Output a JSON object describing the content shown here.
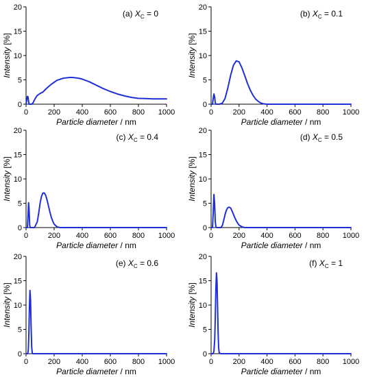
{
  "figure": {
    "x_label_italic": "Particle diameter",
    "x_label_unit": " / nm",
    "y_label_italic": "Intensity",
    "y_label_unit": " [%]"
  },
  "chart_data": [
    {
      "type": "line",
      "panel_label": "(a) X",
      "panel_sub": "C",
      "panel_eq": " = 0",
      "xlabel": "Particle diameter / nm",
      "ylabel": "Intensity [%]",
      "xlim": [
        0,
        1000
      ],
      "ylim": [
        0,
        20
      ],
      "xticks": [
        0,
        200,
        400,
        600,
        800,
        1000
      ],
      "yticks": [
        0,
        5,
        10,
        15,
        20
      ],
      "color": "#1f2fd6",
      "series": [
        {
          "x": [
            0,
            5,
            10,
            14,
            18,
            22,
            26,
            30,
            40,
            50,
            60,
            70,
            80,
            90,
            100,
            120,
            140,
            160,
            180,
            200,
            220,
            240,
            260,
            280,
            300,
            320,
            340,
            360,
            380,
            400,
            450,
            500,
            550,
            600,
            650,
            700,
            750,
            800,
            850,
            900,
            950,
            1000
          ],
          "y": [
            0,
            0.8,
            1.6,
            1.5,
            0.6,
            0,
            0,
            0,
            0,
            0.3,
            0.9,
            1.4,
            1.8,
            2.0,
            2.2,
            2.5,
            3.1,
            3.6,
            4.1,
            4.5,
            4.9,
            5.1,
            5.3,
            5.4,
            5.45,
            5.5,
            5.45,
            5.4,
            5.3,
            5.15,
            4.6,
            3.9,
            3.2,
            2.6,
            2.1,
            1.7,
            1.4,
            1.2,
            1.15,
            1.1,
            1.1,
            1.1
          ]
        }
      ]
    },
    {
      "type": "line",
      "panel_label": "(b) X",
      "panel_sub": "C",
      "panel_eq": " = 0.1",
      "xlabel": "Particle diameter / nm",
      "ylabel": "Intensity [%]",
      "xlim": [
        0,
        1000
      ],
      "ylim": [
        0,
        20
      ],
      "xticks": [
        0,
        200,
        400,
        600,
        800,
        1000
      ],
      "yticks": [
        0,
        5,
        10,
        15,
        20
      ],
      "color": "#1f2fd6",
      "series": [
        {
          "x": [
            0,
            10,
            15,
            20,
            25,
            30,
            35,
            40,
            60,
            80,
            100,
            120,
            140,
            160,
            180,
            200,
            220,
            240,
            260,
            280,
            300,
            320,
            340,
            360,
            380,
            400,
            420,
            500,
            600,
            700,
            800,
            900,
            1000
          ],
          "y": [
            0,
            0,
            1.2,
            2.1,
            1.5,
            0.3,
            0,
            0,
            0,
            0.2,
            1.2,
            3.4,
            6.0,
            8.0,
            8.9,
            8.7,
            7.5,
            5.9,
            4.3,
            2.9,
            1.8,
            1.0,
            0.5,
            0.2,
            0.05,
            0,
            0,
            0,
            0,
            0,
            0,
            0,
            0
          ]
        }
      ]
    },
    {
      "type": "line",
      "panel_label": "(c) X",
      "panel_sub": "C",
      "panel_eq": " = 0.4",
      "xlabel": "Particle diameter / nm",
      "ylabel": "Intensity [%]",
      "xlim": [
        0,
        1000
      ],
      "ylim": [
        0,
        20
      ],
      "xticks": [
        0,
        200,
        400,
        600,
        800,
        1000
      ],
      "yticks": [
        0,
        5,
        10,
        15,
        20
      ],
      "color": "#1f2fd6",
      "series": [
        {
          "x": [
            0,
            10,
            14,
            18,
            22,
            26,
            30,
            40,
            60,
            80,
            90,
            100,
            110,
            120,
            130,
            140,
            150,
            160,
            170,
            180,
            190,
            200,
            220,
            240,
            300,
            400,
            500,
            600,
            700,
            800,
            900,
            1000
          ],
          "y": [
            0,
            0,
            2.5,
            5.1,
            3.5,
            0.5,
            0,
            0,
            0,
            1.2,
            3.0,
            5.0,
            6.4,
            7.1,
            7.1,
            6.6,
            5.6,
            4.4,
            3.2,
            2.1,
            1.3,
            0.7,
            0.15,
            0,
            0,
            0,
            0,
            0,
            0,
            0,
            0,
            0
          ]
        }
      ]
    },
    {
      "type": "line",
      "panel_label": "(d) X",
      "panel_sub": "C",
      "panel_eq": " = 0.5",
      "xlabel": "Particle diameter / nm",
      "ylabel": "Intensity [%]",
      "xlim": [
        0,
        1000
      ],
      "ylim": [
        0,
        20
      ],
      "xticks": [
        0,
        200,
        400,
        600,
        800,
        1000
      ],
      "yticks": [
        0,
        5,
        10,
        15,
        20
      ],
      "color": "#1f2fd6",
      "series": [
        {
          "x": [
            0,
            10,
            15,
            20,
            25,
            30,
            35,
            40,
            50,
            60,
            70,
            80,
            90,
            100,
            110,
            120,
            130,
            140,
            150,
            160,
            170,
            180,
            190,
            200,
            220,
            240,
            300,
            400,
            500,
            600,
            700,
            800,
            900,
            1000
          ],
          "y": [
            0,
            0,
            3.0,
            6.8,
            5.0,
            1.2,
            0.1,
            0,
            0,
            0,
            0,
            0.4,
            1.5,
            2.7,
            3.6,
            4.1,
            4.2,
            4.0,
            3.4,
            2.7,
            2.0,
            1.4,
            0.9,
            0.5,
            0.15,
            0,
            0,
            0,
            0,
            0,
            0,
            0,
            0,
            0
          ]
        }
      ]
    },
    {
      "type": "line",
      "panel_label": "(e) X",
      "panel_sub": "C",
      "panel_eq": " = 0.6",
      "xlabel": "Particle diameter / nm",
      "ylabel": "Intensity [%]",
      "xlim": [
        0,
        1000
      ],
      "ylim": [
        0,
        20
      ],
      "xticks": [
        0,
        200,
        400,
        600,
        800,
        1000
      ],
      "yticks": [
        0,
        5,
        10,
        15,
        20
      ],
      "color": "#1f2fd6",
      "series": [
        {
          "x": [
            0,
            12,
            16,
            20,
            24,
            28,
            32,
            36,
            40,
            44,
            48,
            60,
            100,
            200,
            400,
            600,
            800,
            1000
          ],
          "y": [
            0,
            0,
            0.8,
            4.0,
            9.5,
            13.0,
            11.0,
            5.5,
            1.5,
            0.2,
            0,
            0,
            0,
            0,
            0,
            0,
            0,
            0
          ]
        }
      ]
    },
    {
      "type": "line",
      "panel_label": "(f) X",
      "panel_sub": "C",
      "panel_eq": " = 1",
      "xlabel": "Particle diameter / nm",
      "ylabel": "Intensity [%]",
      "xlim": [
        0,
        1000
      ],
      "ylim": [
        0,
        20
      ],
      "xticks": [
        0,
        200,
        400,
        600,
        800,
        1000
      ],
      "yticks": [
        0,
        5,
        10,
        15,
        20
      ],
      "color": "#1f2fd6",
      "series": [
        {
          "x": [
            0,
            14,
            20,
            26,
            30,
            34,
            38,
            42,
            46,
            50,
            54,
            58,
            70,
            100,
            200,
            400,
            600,
            800,
            1000
          ],
          "y": [
            0,
            0,
            0.5,
            3.0,
            7.5,
            13.0,
            16.6,
            15.0,
            10.0,
            4.5,
            1.2,
            0.2,
            0,
            0,
            0,
            0,
            0,
            0,
            0
          ]
        }
      ]
    }
  ]
}
